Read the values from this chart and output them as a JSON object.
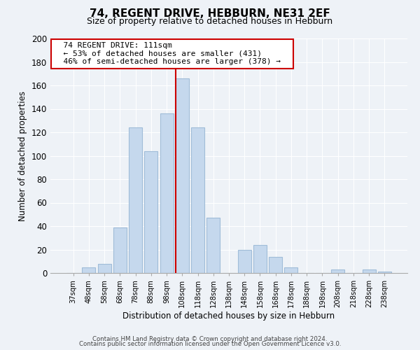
{
  "title": "74, REGENT DRIVE, HEBBURN, NE31 2EF",
  "subtitle": "Size of property relative to detached houses in Hebburn",
  "xlabel": "Distribution of detached houses by size in Hebburn",
  "ylabel": "Number of detached properties",
  "bar_labels": [
    "37sqm",
    "48sqm",
    "58sqm",
    "68sqm",
    "78sqm",
    "88sqm",
    "98sqm",
    "108sqm",
    "118sqm",
    "128sqm",
    "138sqm",
    "148sqm",
    "158sqm",
    "168sqm",
    "178sqm",
    "188sqm",
    "198sqm",
    "208sqm",
    "218sqm",
    "228sqm",
    "238sqm"
  ],
  "bar_values": [
    0,
    5,
    8,
    39,
    124,
    104,
    136,
    166,
    124,
    47,
    0,
    20,
    24,
    14,
    5,
    0,
    0,
    3,
    0,
    3,
    1
  ],
  "bar_color": "#c5d8ed",
  "bar_edge_color": "#a0bcd8",
  "highlight_index": 7,
  "highlight_line_color": "#cc0000",
  "annotation_title": "74 REGENT DRIVE: 111sqm",
  "annotation_line1": "← 53% of detached houses are smaller (431)",
  "annotation_line2": "46% of semi-detached houses are larger (378) →",
  "annotation_box_color": "#ffffff",
  "annotation_box_edge": "#cc0000",
  "ylim": [
    0,
    200
  ],
  "yticks": [
    0,
    20,
    40,
    60,
    80,
    100,
    120,
    140,
    160,
    180,
    200
  ],
  "footer1": "Contains HM Land Registry data © Crown copyright and database right 2024.",
  "footer2": "Contains public sector information licensed under the Open Government Licence v3.0.",
  "background_color": "#eef2f7",
  "plot_background": "#eef2f7",
  "grid_color": "#ffffff"
}
